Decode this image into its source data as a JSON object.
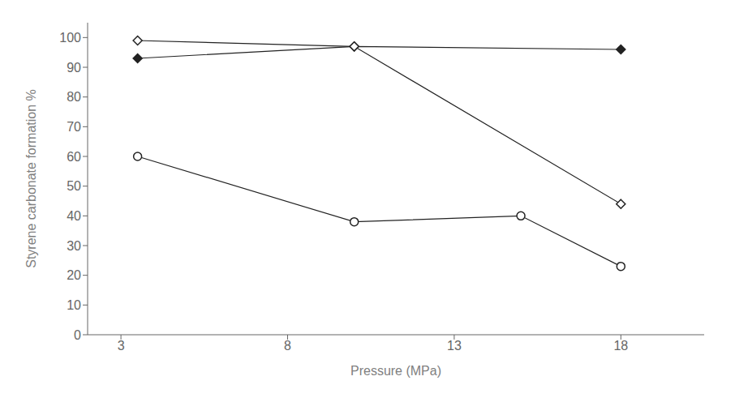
{
  "chart_data": {
    "type": "line",
    "x_label": "Pressure (MPa)",
    "y_label": "Styrene carbonate formation %",
    "xlim": [
      2.0,
      20.5
    ],
    "ylim": [
      0,
      105
    ],
    "xticks": [
      3,
      8,
      13,
      18
    ],
    "yticks": [
      0,
      10,
      20,
      30,
      40,
      50,
      60,
      70,
      80,
      90,
      100
    ],
    "grid": false,
    "series": [
      {
        "x": [
          3.5,
          10,
          18
        ],
        "values": [
          93,
          97,
          96
        ],
        "color": "#222222",
        "marker": "diamond"
      },
      {
        "x": [
          3.5,
          10,
          18
        ],
        "values": [
          99,
          97,
          44
        ],
        "color": "#222222",
        "marker": "open_diamond"
      },
      {
        "x": [
          3.5,
          10,
          15,
          18
        ],
        "values": [
          60,
          38,
          40,
          23
        ],
        "color": "#222222",
        "marker": "open_circle"
      }
    ]
  }
}
